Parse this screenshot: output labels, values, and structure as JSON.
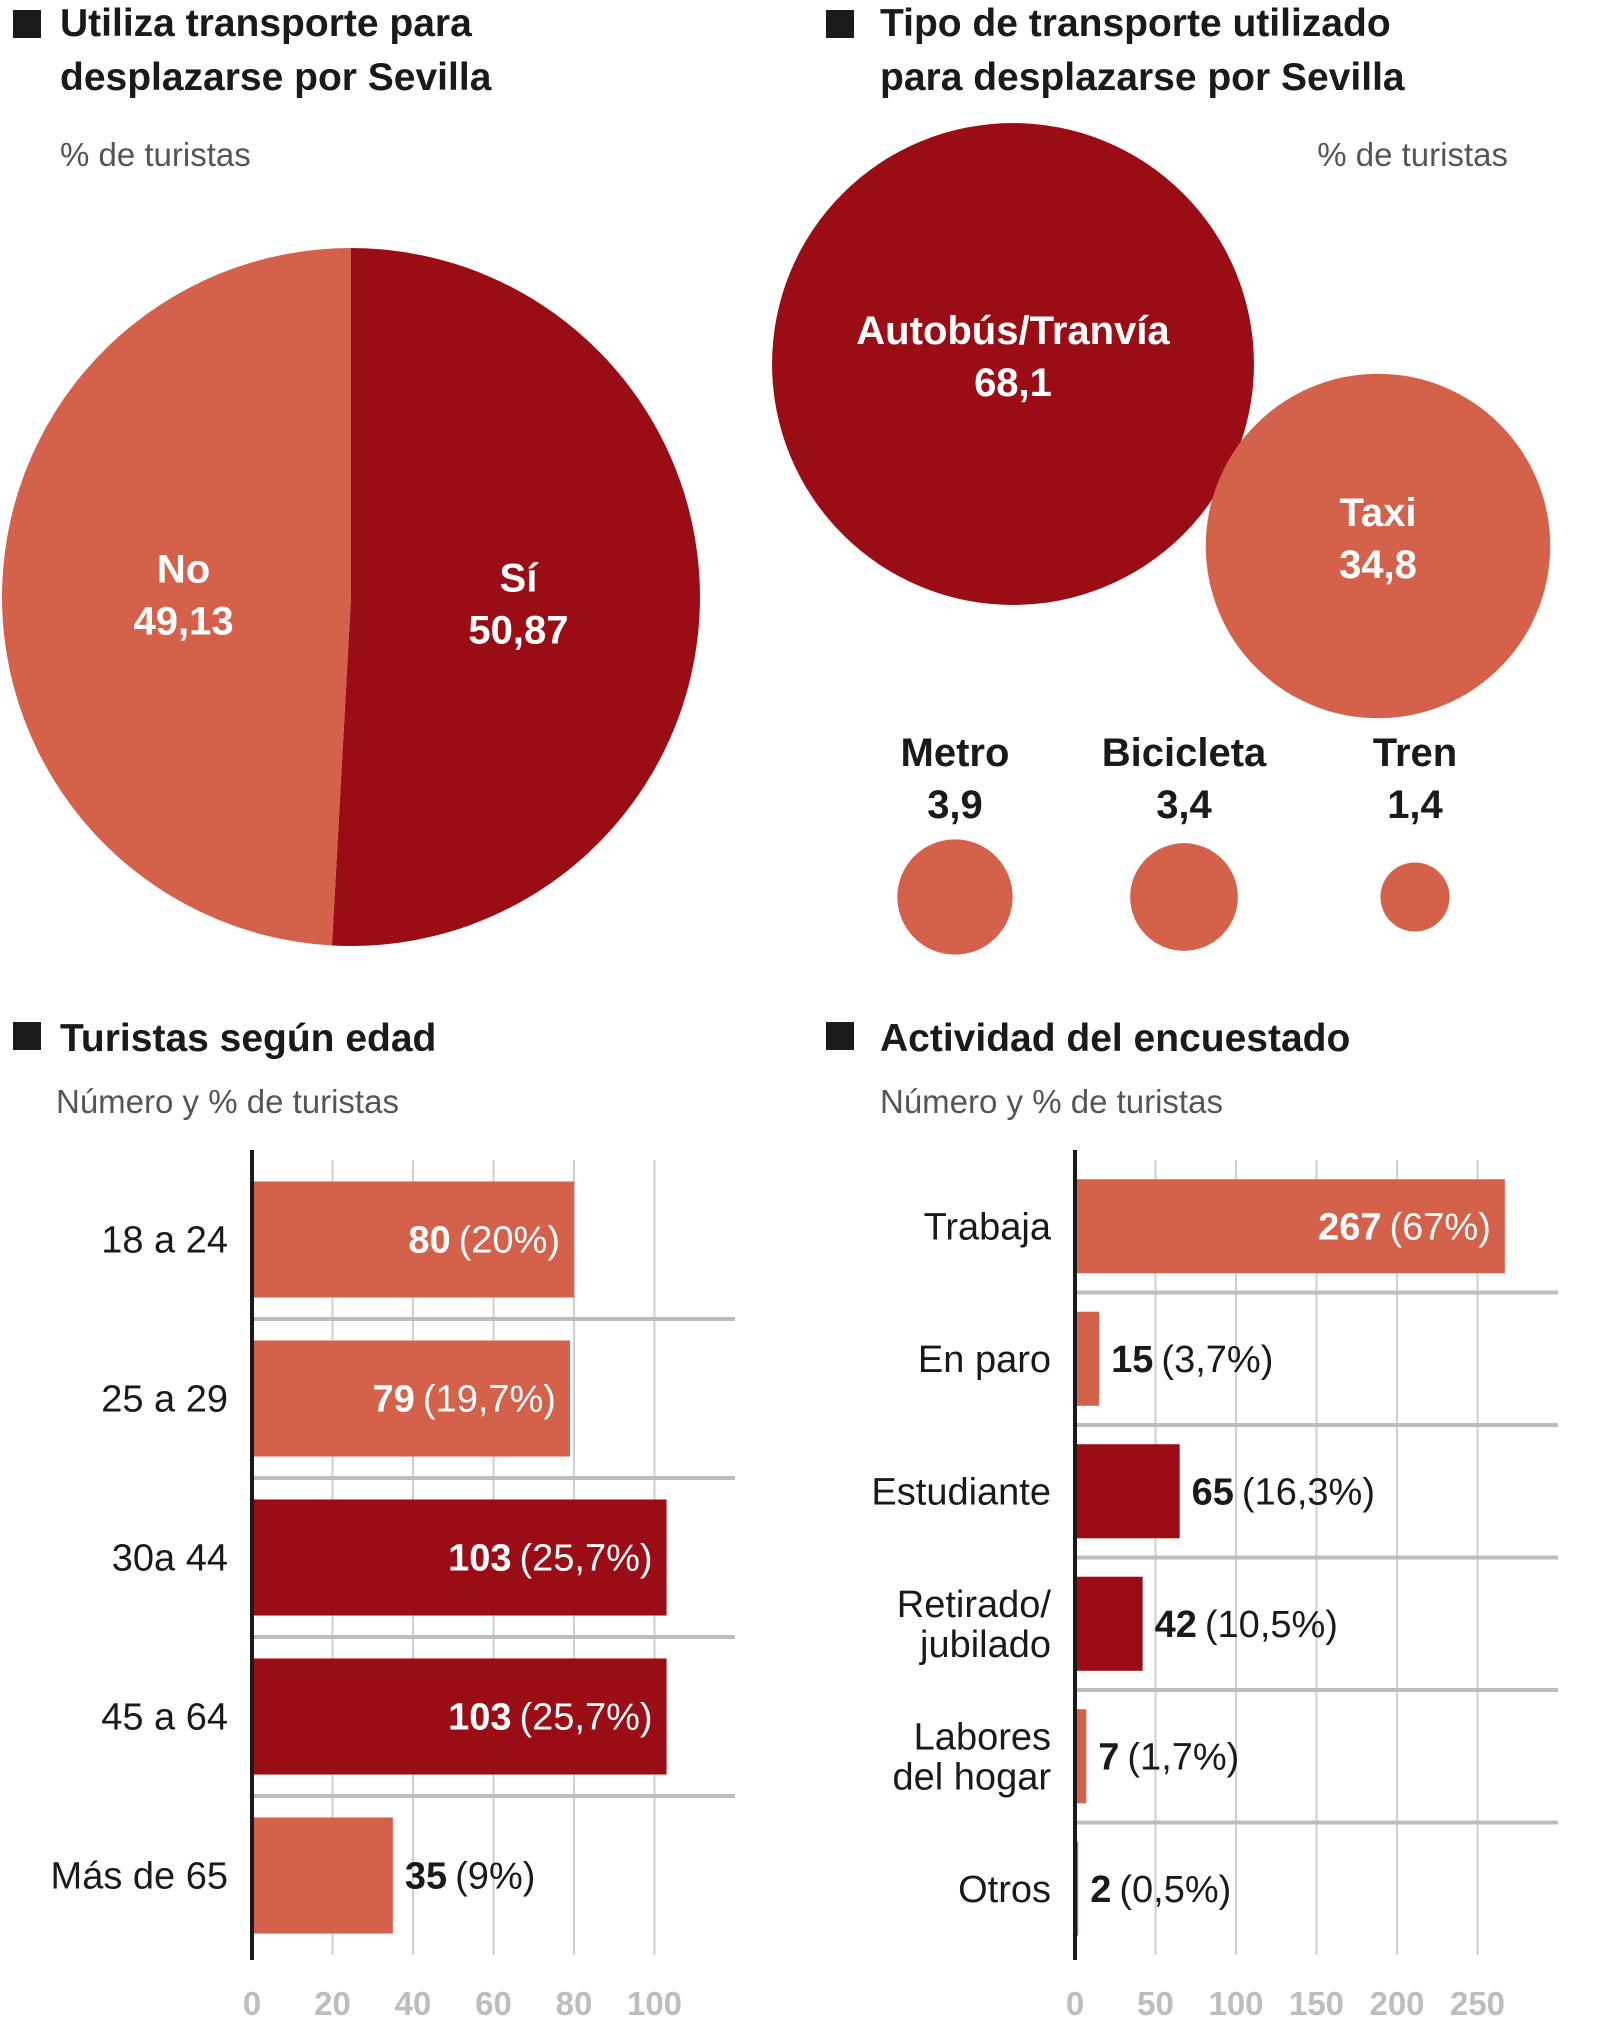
{
  "chart_data": [
    {
      "type": "pie",
      "title": "Utiliza transporte para\ndesplazarse por Sevilla",
      "subtitle": "% de turistas",
      "categories": [
        "Sí",
        "No"
      ],
      "values": [
        50.87,
        49.13
      ],
      "value_labels": [
        "50,87",
        "49,13"
      ],
      "colors": [
        "#9b0d15",
        "#d4614a"
      ]
    },
    {
      "type": "bubble",
      "title": "Tipo de transporte utilizado\npara desplazarse por Sevilla",
      "subtitle": "% de turistas",
      "categories": [
        "Autobús/Tranvía",
        "Taxi",
        "Metro",
        "Bicicleta",
        "Tren"
      ],
      "values": [
        68.1,
        34.8,
        3.9,
        3.4,
        1.4
      ],
      "value_labels": [
        "68,1",
        "34,8",
        "3,9",
        "3,4",
        "1,4"
      ],
      "colors": [
        "#9b0d15",
        "#d4614a",
        "#d4614a",
        "#d4614a",
        "#d4614a"
      ]
    },
    {
      "type": "hbar",
      "title": "Turistas según edad",
      "subtitle": "Número y % de turistas",
      "categories": [
        "18 a 24",
        "25 a 29",
        "30a 44",
        "45 a 64",
        "Más de 65"
      ],
      "values": [
        80,
        79,
        103,
        103,
        35
      ],
      "percent_labels": [
        "(20%)",
        "(19,7%)",
        "(25,7%)",
        "(25,7%)",
        "(9%)"
      ],
      "colors": [
        "#d4614a",
        "#d4614a",
        "#9b0d15",
        "#9b0d15",
        "#d4614a"
      ],
      "xlim": [
        0,
        120
      ],
      "xticks": [
        0,
        20,
        40,
        60,
        80,
        100
      ],
      "grid": true
    },
    {
      "type": "hbar",
      "title": "Actividad del encuestado",
      "subtitle": "Número y % de turistas",
      "categories": [
        "Trabaja",
        "En paro",
        "Estudiante",
        "Retirado/\njubilado",
        "Labores\ndel hogar",
        "Otros"
      ],
      "values": [
        267,
        15,
        65,
        42,
        7,
        2
      ],
      "percent_labels": [
        "(67%)",
        "(3,7%)",
        "(16,3%)",
        "(10,5%)",
        "(1,7%)",
        "(0,5%)"
      ],
      "colors": [
        "#d4614a",
        "#d4614a",
        "#9b0d15",
        "#9b0d15",
        "#d4614a",
        "#d4614a"
      ],
      "xlim": [
        0,
        300
      ],
      "xticks": [
        0,
        50,
        100,
        150,
        200,
        250
      ],
      "grid": true
    }
  ]
}
